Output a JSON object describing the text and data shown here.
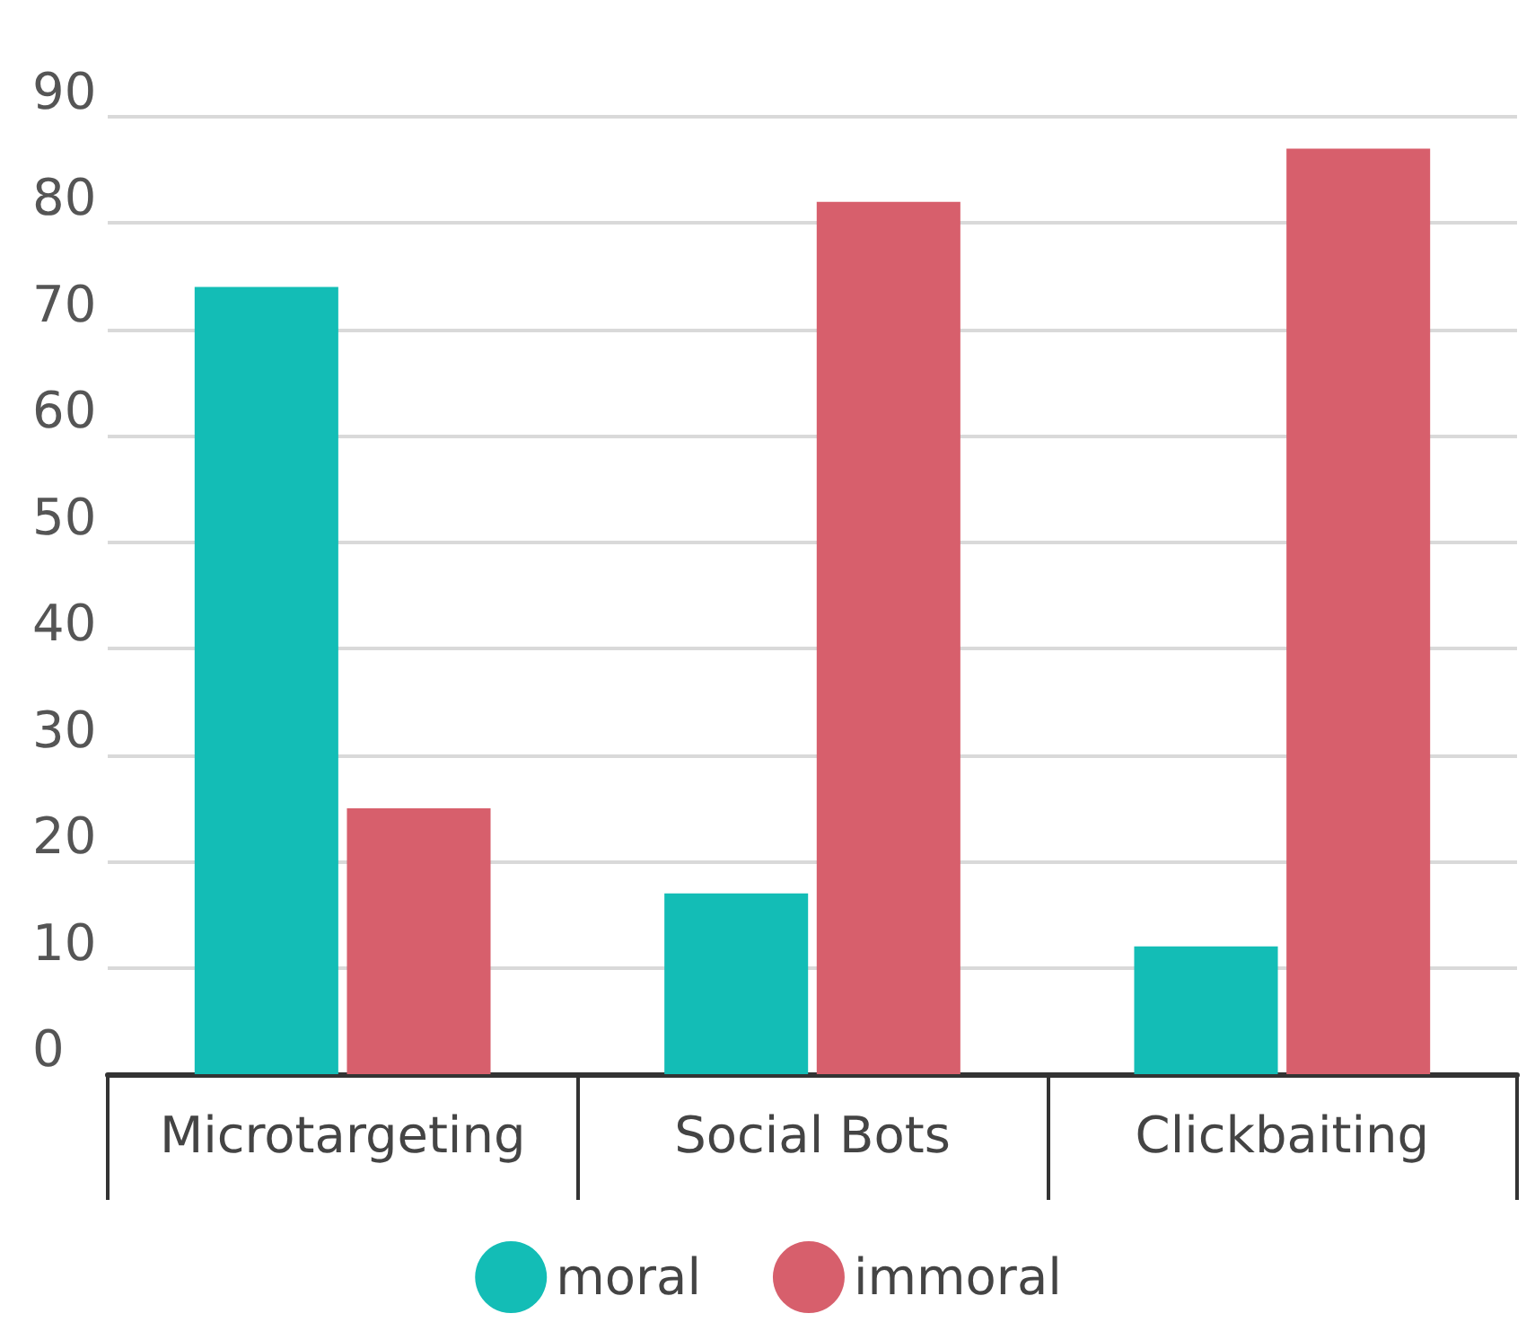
{
  "chart_data": {
    "type": "bar",
    "categories": [
      "Microtargeting",
      "Social Bots",
      "Clickbaiting"
    ],
    "series": [
      {
        "name": "moral",
        "color": "#13bdb6",
        "values": [
          74,
          17,
          12
        ]
      },
      {
        "name": "immoral",
        "color": "#d75f6c",
        "values": [
          25,
          82,
          87
        ]
      }
    ],
    "ylim": [
      0,
      90
    ],
    "yticks": [
      0,
      10,
      20,
      30,
      40,
      50,
      60,
      70,
      80,
      90
    ],
    "grid": "y",
    "legend": "bottom"
  }
}
